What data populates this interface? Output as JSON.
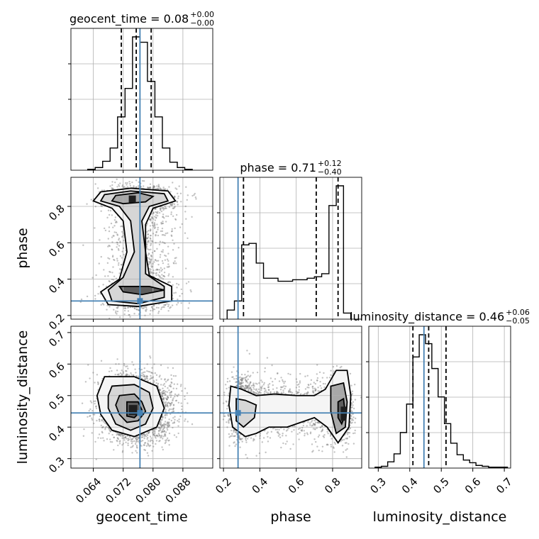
{
  "chart_data": {
    "type": "corner",
    "parameters": [
      "geocent_time",
      "phase",
      "luminosity_distance"
    ],
    "grid": true,
    "truth_color": "#4682b4",
    "truths": {
      "geocent_time": 0.0765,
      "phase": 0.28,
      "luminosity_distance": 0.445
    },
    "titles": [
      {
        "param": "geocent_time",
        "text": "geocent_time = 0.08",
        "plus": "+0.00",
        "minus": "−0.00"
      },
      {
        "param": "phase",
        "text": "phase = 0.71",
        "plus": "+0.12",
        "minus": "−0.40"
      },
      {
        "param": "luminosity_distance",
        "text": "luminosity_distance = 0.46",
        "plus": "+0.06",
        "minus": "−0.05"
      }
    ],
    "axis_labels": {
      "geocent_time": "geocent_time",
      "phase": "phase",
      "luminosity_distance": "luminosity_distance"
    },
    "ranges": {
      "geocent_time": [
        0.058,
        0.096
      ],
      "phase": [
        0.18,
        0.96
      ],
      "luminosity_distance": [
        0.27,
        0.72
      ]
    },
    "ticks": {
      "geocent_time": [
        "0.064",
        "0.072",
        "0.080",
        "0.088"
      ],
      "phase_x": [
        "0.2",
        "0.4",
        "0.6",
        "0.8"
      ],
      "phase_y": [
        "0.2",
        "0.4",
        "0.6",
        "0.8"
      ],
      "luminosity_distance": [
        "0.3",
        "0.4",
        "0.5",
        "0.6",
        "0.7"
      ]
    },
    "quantiles": {
      "geocent_time": [
        0.0715,
        0.0755,
        0.0795
      ],
      "phase": [
        0.31,
        0.71,
        0.83
      ],
      "luminosity_distance": [
        0.41,
        0.46,
        0.515
      ]
    },
    "histograms": {
      "geocent_time": {
        "edges": [
          0.0625,
          0.0645,
          0.0665,
          0.0685,
          0.0705,
          0.0725,
          0.0745,
          0.0765,
          0.0785,
          0.0805,
          0.0825,
          0.0845,
          0.0865,
          0.0885,
          0.0905
        ],
        "counts": [
          1,
          3,
          10,
          25,
          60,
          92,
          150,
          144,
          100,
          60,
          25,
          9,
          3,
          1
        ]
      },
      "phase": {
        "edges": [
          0.22,
          0.26,
          0.3,
          0.34,
          0.38,
          0.42,
          0.46,
          0.5,
          0.54,
          0.58,
          0.62,
          0.66,
          0.7,
          0.74,
          0.78,
          0.82,
          0.86,
          0.9
        ],
        "counts": [
          6,
          12,
          49,
          50,
          37,
          27,
          27,
          25,
          25,
          26,
          26,
          27,
          28,
          30,
          75,
          88,
          4
        ]
      },
      "luminosity_distance": {
        "edges": [
          0.29,
          0.31,
          0.33,
          0.35,
          0.37,
          0.39,
          0.41,
          0.43,
          0.45,
          0.47,
          0.49,
          0.51,
          0.53,
          0.55,
          0.57,
          0.59,
          0.61,
          0.63,
          0.65,
          0.67,
          0.69,
          0.71
        ],
        "counts": [
          1,
          2,
          7,
          16,
          40,
          72,
          125,
          150,
          140,
          112,
          80,
          50,
          28,
          15,
          9,
          6,
          3,
          2,
          1,
          1,
          1
        ]
      }
    },
    "contours_2d": {
      "phase_vs_geocent_time": [
        {
          "level": 1,
          "points": [
            [
              0.066,
              0.88
            ],
            [
              0.074,
              0.9
            ],
            [
              0.084,
              0.885
            ],
            [
              0.086,
              0.83
            ],
            [
              0.08,
              0.79
            ],
            [
              0.078,
              0.7
            ],
            [
              0.078,
              0.55
            ],
            [
              0.079,
              0.42
            ],
            [
              0.085,
              0.36
            ],
            [
              0.085,
              0.28
            ],
            [
              0.076,
              0.25
            ],
            [
              0.068,
              0.26
            ],
            [
              0.066,
              0.33
            ],
            [
              0.071,
              0.4
            ],
            [
              0.073,
              0.55
            ],
            [
              0.072,
              0.72
            ],
            [
              0.069,
              0.79
            ],
            [
              0.064,
              0.83
            ]
          ]
        },
        {
          "level": 2,
          "points": [
            [
              0.067,
              0.865
            ],
            [
              0.074,
              0.885
            ],
            [
              0.083,
              0.87
            ],
            [
              0.084,
              0.83
            ],
            [
              0.079,
              0.8
            ],
            [
              0.077,
              0.72
            ],
            [
              0.078,
              0.55
            ],
            [
              0.078,
              0.43
            ],
            [
              0.083,
              0.36
            ],
            [
              0.083,
              0.3
            ],
            [
              0.076,
              0.265
            ],
            [
              0.069,
              0.28
            ],
            [
              0.068,
              0.34
            ],
            [
              0.072,
              0.41
            ],
            [
              0.075,
              0.55
            ],
            [
              0.074,
              0.72
            ],
            [
              0.071,
              0.8
            ],
            [
              0.066,
              0.83
            ]
          ]
        },
        {
          "level": 3,
          "points": [
            [
              0.07,
              0.86
            ],
            [
              0.076,
              0.875
            ],
            [
              0.08,
              0.855
            ],
            [
              0.078,
              0.825
            ],
            [
              0.072,
              0.815
            ],
            [
              0.069,
              0.83
            ]
          ]
        },
        {
          "level": 4,
          "points": [
            [
              0.071,
              0.36
            ],
            [
              0.079,
              0.36
            ],
            [
              0.083,
              0.34
            ],
            [
              0.077,
              0.315
            ],
            [
              0.072,
              0.33
            ]
          ]
        }
      ],
      "luminosity_distance_vs_geocent_time": [
        {
          "level": 1,
          "points": [
            [
              0.067,
              0.56
            ],
            [
              0.075,
              0.56
            ],
            [
              0.081,
              0.53
            ],
            [
              0.083,
              0.46
            ],
            [
              0.081,
              0.4
            ],
            [
              0.075,
              0.37
            ],
            [
              0.069,
              0.39
            ],
            [
              0.066,
              0.44
            ],
            [
              0.065,
              0.5
            ]
          ]
        },
        {
          "level": 2,
          "points": [
            [
              0.069,
              0.53
            ],
            [
              0.075,
              0.535
            ],
            [
              0.079,
              0.51
            ],
            [
              0.08,
              0.46
            ],
            [
              0.078,
              0.41
            ],
            [
              0.074,
              0.39
            ],
            [
              0.07,
              0.41
            ],
            [
              0.068,
              0.46
            ],
            [
              0.068,
              0.5
            ]
          ]
        },
        {
          "level": 3,
          "points": [
            [
              0.071,
              0.5
            ],
            [
              0.075,
              0.505
            ],
            [
              0.077,
              0.48
            ],
            [
              0.078,
              0.45
            ],
            [
              0.076,
              0.42
            ],
            [
              0.073,
              0.415
            ],
            [
              0.071,
              0.44
            ],
            [
              0.07,
              0.47
            ]
          ]
        },
        {
          "level": 4,
          "points": [
            [
              0.073,
              0.48
            ],
            [
              0.076,
              0.48
            ],
            [
              0.077,
              0.455
            ],
            [
              0.075,
              0.43
            ],
            [
              0.073,
              0.435
            ]
          ]
        }
      ],
      "luminosity_distance_vs_phase": [
        {
          "level": 1,
          "points": [
            [
              0.24,
              0.53
            ],
            [
              0.3,
              0.52
            ],
            [
              0.38,
              0.5
            ],
            [
              0.48,
              0.505
            ],
            [
              0.6,
              0.5
            ],
            [
              0.7,
              0.5
            ],
            [
              0.76,
              0.52
            ],
            [
              0.82,
              0.58
            ],
            [
              0.88,
              0.58
            ],
            [
              0.9,
              0.5
            ],
            [
              0.89,
              0.4
            ],
            [
              0.83,
              0.35
            ],
            [
              0.77,
              0.4
            ],
            [
              0.7,
              0.43
            ],
            [
              0.55,
              0.4
            ],
            [
              0.45,
              0.4
            ],
            [
              0.38,
              0.38
            ],
            [
              0.32,
              0.37
            ],
            [
              0.25,
              0.4
            ],
            [
              0.23,
              0.47
            ]
          ]
        },
        {
          "level": 2,
          "points": [
            [
              0.27,
              0.49
            ],
            [
              0.32,
              0.485
            ],
            [
              0.38,
              0.47
            ],
            [
              0.37,
              0.43
            ],
            [
              0.31,
              0.4
            ],
            [
              0.27,
              0.42
            ]
          ]
        },
        {
          "level": 3,
          "points": [
            [
              0.79,
              0.53
            ],
            [
              0.86,
              0.54
            ],
            [
              0.88,
              0.48
            ],
            [
              0.87,
              0.4
            ],
            [
              0.82,
              0.38
            ],
            [
              0.79,
              0.45
            ]
          ]
        },
        {
          "level": 4,
          "points": [
            [
              0.83,
              0.48
            ],
            [
              0.86,
              0.49
            ],
            [
              0.87,
              0.44
            ],
            [
              0.85,
              0.41
            ],
            [
              0.83,
              0.43
            ]
          ]
        }
      ]
    }
  }
}
